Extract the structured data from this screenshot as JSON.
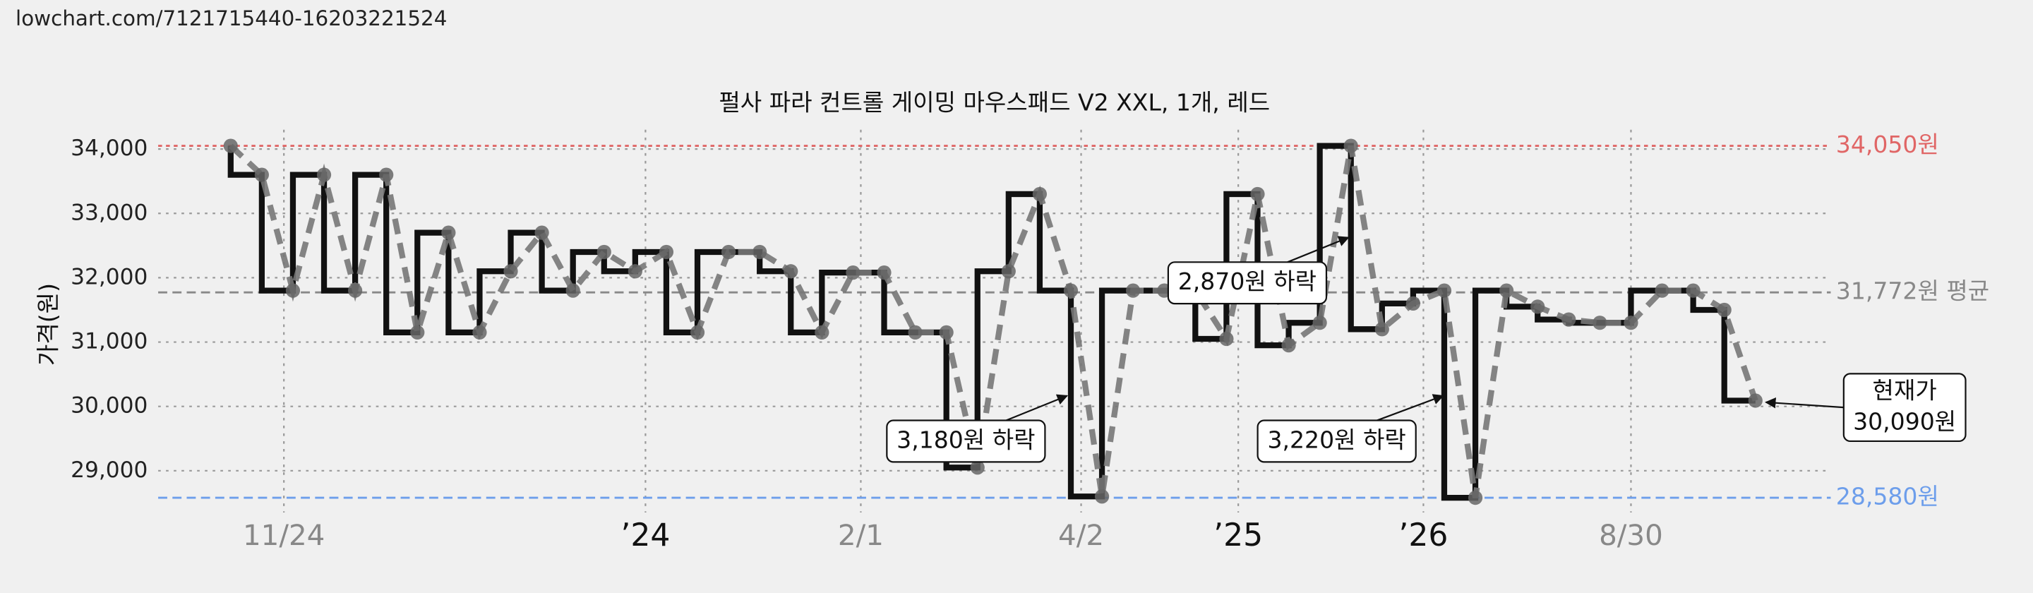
{
  "source": "lowchart.com/7121715440-16203221524",
  "chart_data": {
    "type": "line",
    "title": "펄사 파라 컨트롤 게이밍 마우스패드 V2 XXL, 1개, 레드",
    "y_label": "가격(원)",
    "x": [
      0,
      1,
      2,
      3,
      4,
      5,
      6,
      7,
      8,
      9,
      10,
      11,
      12,
      13,
      14,
      15,
      16,
      17,
      18,
      19,
      20,
      21,
      22,
      23,
      24,
      25,
      26,
      27,
      28,
      29,
      30,
      31,
      32,
      33,
      34,
      35,
      36,
      37,
      38,
      39,
      40,
      41,
      42,
      43,
      44,
      45,
      46,
      47,
      48,
      49
    ],
    "series": [
      {
        "color": "#111111",
        "values": [
          34050,
          33600,
          31800,
          33600,
          31800,
          33600,
          31150,
          32700,
          31150,
          32100,
          32700,
          31800,
          32400,
          32100,
          32400,
          31150,
          32400,
          32400,
          32100,
          31150,
          32080,
          32080,
          31150,
          31150,
          29050,
          32100,
          33300,
          31800,
          28600,
          31800,
          31800,
          31800,
          31050,
          33300,
          30950,
          31300,
          34050,
          31200,
          31600,
          31800,
          28580,
          31800,
          31550,
          31350,
          31300,
          31300,
          31800,
          31800,
          31500,
          30090
        ]
      }
    ],
    "xlim": [
      -2.33,
      51.42
    ],
    "ylim": [
      28350,
      34300
    ],
    "yticks": [
      {
        "value": 29000,
        "label": "29,000"
      },
      {
        "value": 30000,
        "label": "30,000"
      },
      {
        "value": 31000,
        "label": "31,000"
      },
      {
        "value": 32000,
        "label": "32,000"
      },
      {
        "value": 33000,
        "label": "33,000"
      },
      {
        "value": 34000,
        "label": "34,000"
      }
    ],
    "xticks": [
      {
        "value": 1.71,
        "label": "11/24"
      },
      {
        "value": 13.33,
        "label": "’24"
      },
      {
        "value": 20.25,
        "label": "2/1"
      },
      {
        "value": 27.33,
        "label": "4/2"
      },
      {
        "value": 32.38,
        "label": "’25"
      },
      {
        "value": 38.33,
        "label": "’26"
      },
      {
        "value": 45,
        "label": "8/30"
      }
    ],
    "reference_lines": [
      {
        "value": 34050,
        "label": "34,050원",
        "color": "#e06666"
      },
      {
        "value": 31772,
        "label": "31,772원 평균",
        "color": "#888888"
      },
      {
        "value": 28580,
        "label": "28,580원",
        "color": "#6d9eeb"
      }
    ],
    "annotations": [
      {
        "text": "3,180원 하락"
      },
      {
        "text": "2,870원 하락"
      },
      {
        "text": "3,220원 하락"
      },
      {
        "lines": [
          "현재가",
          "30,090원"
        ]
      }
    ],
    "grid": true
  }
}
